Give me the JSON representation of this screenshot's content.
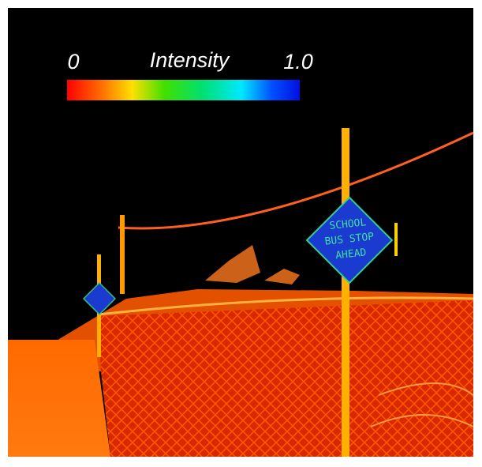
{
  "colorbar": {
    "title": "Intensity",
    "ticks": [
      0,
      {
        "value": 1,
        "label": "1.0"
      }
    ]
  },
  "scene": {
    "sign": [
      "SCHOOL",
      "BUS STOP",
      "AHEAD"
    ]
  }
}
